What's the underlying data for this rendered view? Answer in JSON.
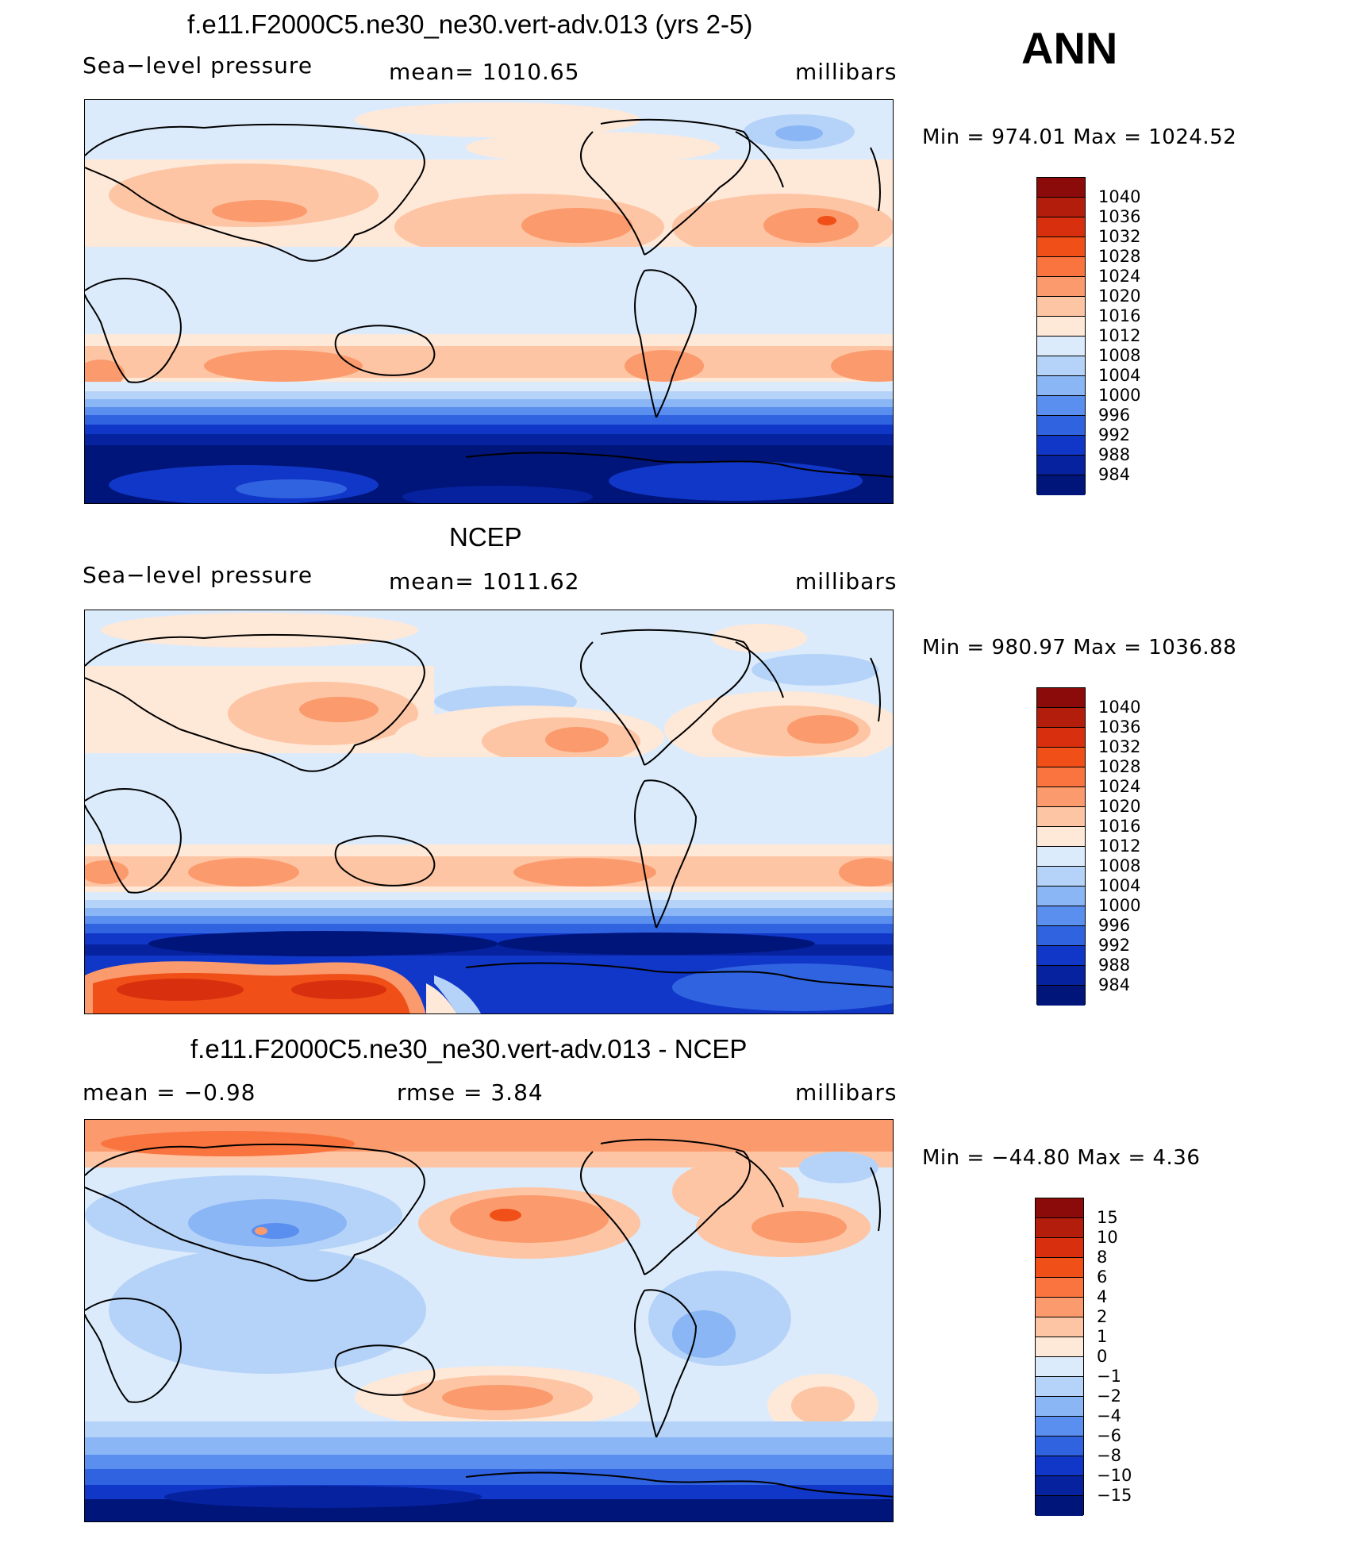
{
  "season": "ANN",
  "chart_data": [
    {
      "type": "heatmap",
      "title": "f.e11.F2000C5.ne30_ne30.vert-adv.013 (yrs 2-5)",
      "variable": "Sea−level pressure",
      "stat_left": "mean=  1010.65",
      "units": "millibars",
      "min_max": "Min  =  974.01  Max  =  1024.52",
      "levels": [
        "1040",
        "1036",
        "1032",
        "1028",
        "1024",
        "1020",
        "1016",
        "1012",
        "1008",
        "1004",
        "1000",
        "996",
        "992",
        "988",
        "984"
      ],
      "colors": [
        "#8b0a0a",
        "#b31e0c",
        "#d8300e",
        "#f04f18",
        "#fa7440",
        "#fb9a6c",
        "#fdc5a4",
        "#fee8d8",
        "#dcebfb",
        "#b5d3f8",
        "#8ab6f5",
        "#5a8eef",
        "#2f63e0",
        "#1137c8",
        "#06229f",
        "#00157a"
      ]
    },
    {
      "type": "heatmap",
      "title": "NCEP",
      "variable": "Sea−level pressure",
      "stat_left": "mean=  1011.62",
      "units": "millibars",
      "min_max": "Min  =  980.97  Max  =  1036.88",
      "levels": [
        "1040",
        "1036",
        "1032",
        "1028",
        "1024",
        "1020",
        "1016",
        "1012",
        "1008",
        "1004",
        "1000",
        "996",
        "992",
        "988",
        "984"
      ],
      "colors": [
        "#8b0a0a",
        "#b31e0c",
        "#d8300e",
        "#f04f18",
        "#fa7440",
        "#fb9a6c",
        "#fdc5a4",
        "#fee8d8",
        "#dcebfb",
        "#b5d3f8",
        "#8ab6f5",
        "#5a8eef",
        "#2f63e0",
        "#1137c8",
        "#06229f",
        "#00157a"
      ]
    },
    {
      "type": "heatmap",
      "title": "f.e11.F2000C5.ne30_ne30.vert-adv.013 - NCEP",
      "stat_left": "mean  =     −0.98",
      "stat_mid": "rmse  =      3.84",
      "units": "millibars",
      "min_max": "Min  =  −44.80  Max  =      4.36",
      "levels": [
        "15",
        "10",
        "8",
        "6",
        "4",
        "2",
        "1",
        "0",
        "−1",
        "−2",
        "−4",
        "−6",
        "−8",
        "−10",
        "−15"
      ],
      "colors": [
        "#8b0a0a",
        "#b31e0c",
        "#d8300e",
        "#f04f18",
        "#fa7440",
        "#fb9a6c",
        "#fdc5a4",
        "#fee8d8",
        "#dcebfb",
        "#b5d3f8",
        "#8ab6f5",
        "#5a8eef",
        "#2f63e0",
        "#1137c8",
        "#06229f",
        "#00157a"
      ]
    }
  ]
}
